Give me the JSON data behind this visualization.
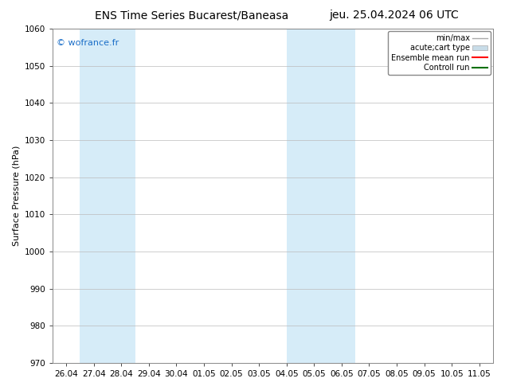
{
  "title_left": "ENS Time Series Bucarest/Baneasa",
  "title_right": "jeu. 25.04.2024 06 UTC",
  "ylabel": "Surface Pressure (hPa)",
  "ylim": [
    970,
    1060
  ],
  "yticks": [
    970,
    980,
    990,
    1000,
    1010,
    1020,
    1030,
    1040,
    1050,
    1060
  ],
  "xtick_labels": [
    "26.04",
    "27.04",
    "28.04",
    "29.04",
    "30.04",
    "01.05",
    "02.05",
    "03.05",
    "04.05",
    "05.05",
    "06.05",
    "07.05",
    "08.05",
    "09.05",
    "10.05",
    "11.05"
  ],
  "xtick_positions": [
    0,
    1,
    2,
    3,
    4,
    5,
    6,
    7,
    8,
    9,
    10,
    11,
    12,
    13,
    14,
    15
  ],
  "xlim": [
    -0.5,
    15.5
  ],
  "shaded_bands": [
    {
      "x_start": 0.5,
      "x_end": 2.5,
      "color": "#d6ecf8"
    },
    {
      "x_start": 8.0,
      "x_end": 10.5,
      "color": "#d6ecf8"
    }
  ],
  "watermark": "© wofrance.fr",
  "watermark_color": "#1a6ec8",
  "background_color": "#ffffff",
  "legend_entries": [
    {
      "label": "min/max",
      "color": "#aaaaaa",
      "linewidth": 1.0,
      "type": "line"
    },
    {
      "label": "acute;cart type",
      "color": "#c8dce8",
      "linewidth": 6,
      "type": "patch"
    },
    {
      "label": "Ensemble mean run",
      "color": "#ff0000",
      "linewidth": 1.5,
      "type": "line"
    },
    {
      "label": "Controll run",
      "color": "#007000",
      "linewidth": 1.5,
      "type": "line"
    }
  ],
  "grid_color": "#bbbbbb",
  "title_fontsize": 10,
  "label_fontsize": 8,
  "tick_fontsize": 7.5,
  "watermark_fontsize": 8
}
